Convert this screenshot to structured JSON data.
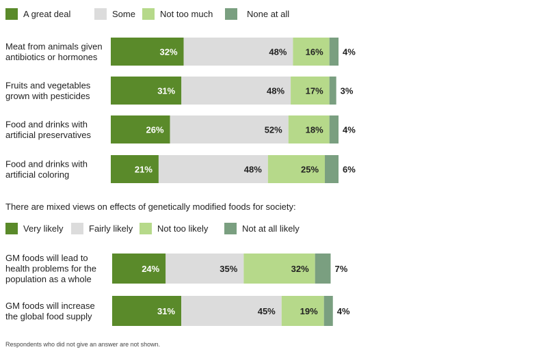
{
  "legend1": [
    {
      "label": "A great deal",
      "color": "#5a8a2a"
    },
    {
      "label": "Some",
      "color": "#dcdcdc"
    },
    {
      "label": "Not too much",
      "color": "#b6d98a"
    },
    {
      "label": "None at all",
      "color": "#7a9f80"
    }
  ],
  "subtitle": "There are mixed views on effects of genetically modified foods for society:",
  "legend2": [
    {
      "label": "Very likely",
      "color": "#5a8a2a"
    },
    {
      "label": "Fairly likely",
      "color": "#dcdcdc"
    },
    {
      "label": "Not too likely",
      "color": "#b6d98a"
    },
    {
      "label": "Not at all likely",
      "color": "#7a9f80"
    }
  ],
  "note": "Respondents who did not give an answer are not shown.",
  "chart_data": [
    {
      "type": "bar",
      "orientation": "horizontal-stacked",
      "categories": [
        [
          "Meat from animals given",
          "antibiotics or hormones"
        ],
        [
          "Fruits and vegetables",
          "grown with pesticides"
        ],
        [
          "Food and drinks with",
          "artificial preservatives"
        ],
        [
          "Food and drinks with",
          "artificial coloring"
        ]
      ],
      "series": [
        {
          "name": "A great deal",
          "values": [
            32,
            31,
            26,
            21
          ]
        },
        {
          "name": "Some",
          "values": [
            48,
            48,
            52,
            48
          ]
        },
        {
          "name": "Not too much",
          "values": [
            16,
            17,
            18,
            25
          ]
        },
        {
          "name": "None at all",
          "values": [
            4,
            3,
            4,
            6
          ]
        }
      ],
      "unit": "%"
    },
    {
      "type": "bar",
      "orientation": "horizontal-stacked",
      "categories": [
        [
          "GM foods will lead to",
          "health problems for the",
          "population as a whole"
        ],
        [
          "GM foods will increase",
          "the global food supply"
        ]
      ],
      "series": [
        {
          "name": "Very likely",
          "values": [
            24,
            31
          ]
        },
        {
          "name": "Fairly likely",
          "values": [
            35,
            45
          ]
        },
        {
          "name": "Not too likely",
          "values": [
            32,
            19
          ]
        },
        {
          "name": "Not at all likely",
          "values": [
            7,
            4
          ]
        }
      ],
      "unit": "%"
    }
  ]
}
